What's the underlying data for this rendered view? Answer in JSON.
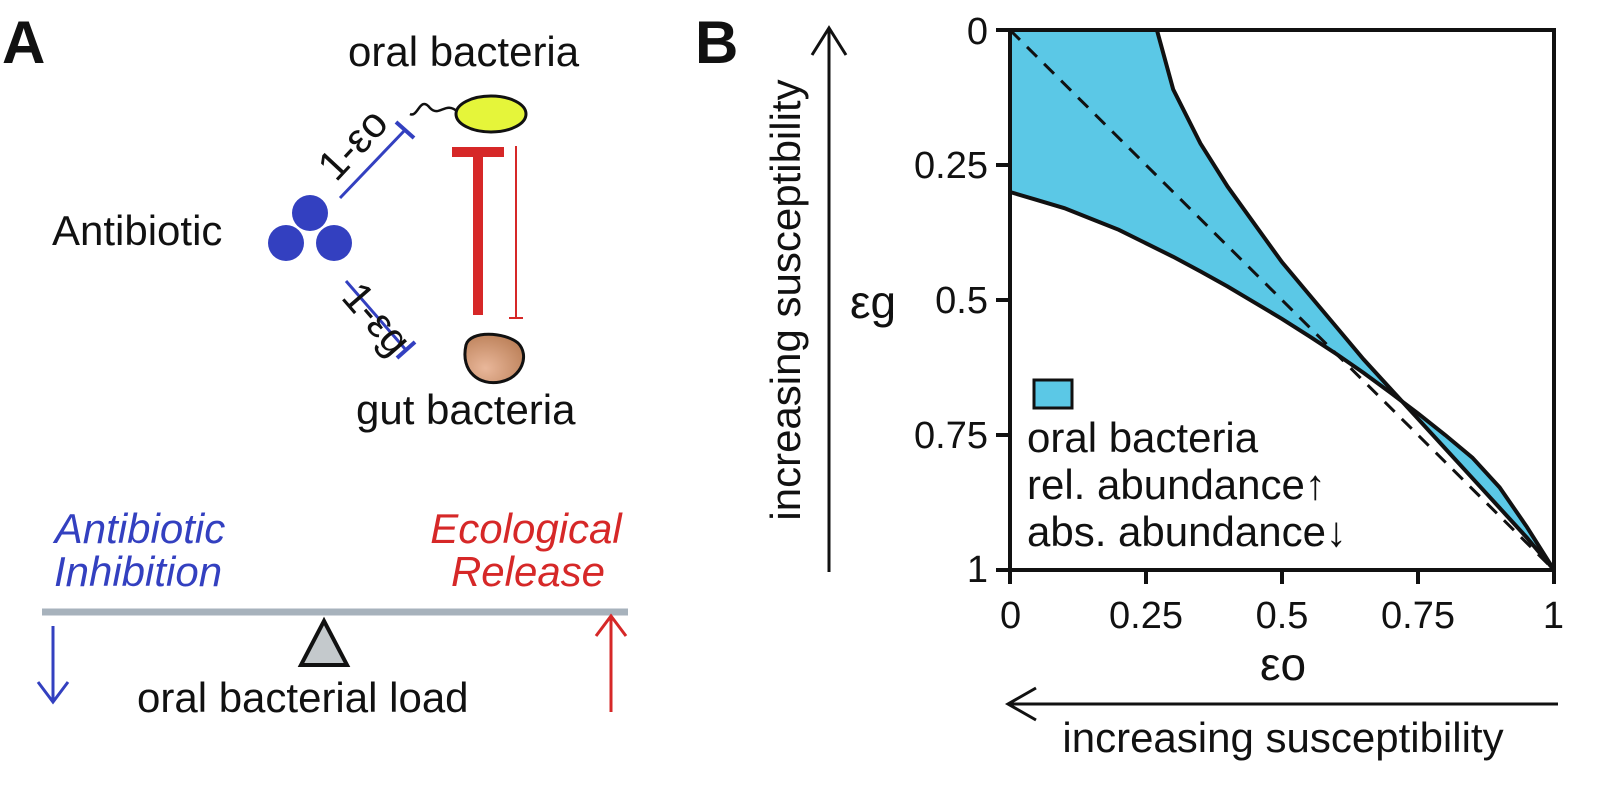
{
  "panel_a": {
    "letter": "A",
    "oral_label": "oral bacteria",
    "gut_label": "gut bacteria",
    "antibiotic_label": "Antibiotic",
    "eps_o_label": "1-εo",
    "eps_g_label": "1-εg",
    "balance": {
      "left_line1": "Antibiotic",
      "left_line2": "Inhibition",
      "right_line1": "Ecological",
      "right_line2": "Release",
      "load_label": "oral bacterial load"
    }
  },
  "panel_b": {
    "letter": "B",
    "chart_data": {
      "type": "area",
      "x_ticks": [
        "0",
        "0.25",
        "0.5",
        "0.75",
        "1"
      ],
      "y_ticks": [
        "0",
        "0.25",
        "0.5",
        "0.75",
        "1"
      ],
      "xlim": [
        0,
        1
      ],
      "ylim": [
        1,
        0
      ],
      "xlabel": "εo",
      "ylabel": "εg",
      "x_direction_label": "increasing susceptibility",
      "y_direction_label": "increasing susceptibility",
      "region_lower_boundary": {
        "x": [
          0,
          0.05,
          0.1,
          0.15,
          0.2,
          0.25,
          0.3,
          0.35,
          0.4,
          0.45,
          0.5,
          0.55,
          0.6,
          0.65,
          0.7,
          0.75,
          0.8,
          0.85,
          0.9,
          0.95,
          1
        ],
        "y": [
          0.3,
          0.315,
          0.33,
          0.35,
          0.37,
          0.395,
          0.42,
          0.447,
          0.475,
          0.505,
          0.535,
          0.567,
          0.6,
          0.635,
          0.672,
          0.71,
          0.75,
          0.792,
          0.847,
          0.92,
          1
        ]
      },
      "region_upper_boundary": {
        "x": [
          0.27,
          0.3,
          0.35,
          0.4,
          0.45,
          0.5,
          0.55,
          0.6,
          0.65,
          0.7,
          0.75,
          0.8,
          0.85,
          0.9,
          0.95,
          1
        ],
        "y": [
          0,
          0.11,
          0.21,
          0.29,
          0.36,
          0.43,
          0.49,
          0.55,
          0.61,
          0.665,
          0.72,
          0.775,
          0.83,
          0.885,
          0.94,
          1
        ]
      },
      "diagonal": {
        "x": [
          0,
          1
        ],
        "y": [
          0,
          1
        ],
        "style": "dashed"
      },
      "region_color": "#5BC8E6",
      "legend": {
        "line1": "oral bacteria",
        "line2": "rel. abundance↑",
        "line3": "abs. abundance↓"
      }
    }
  },
  "colors": {
    "blue": "#3340C0",
    "red": "#D62828",
    "oral_fill": "#E5F53A",
    "gut_fill": "#C8906A",
    "beam": "#A7B2BC",
    "fulcrum": "#C4C9CC"
  }
}
